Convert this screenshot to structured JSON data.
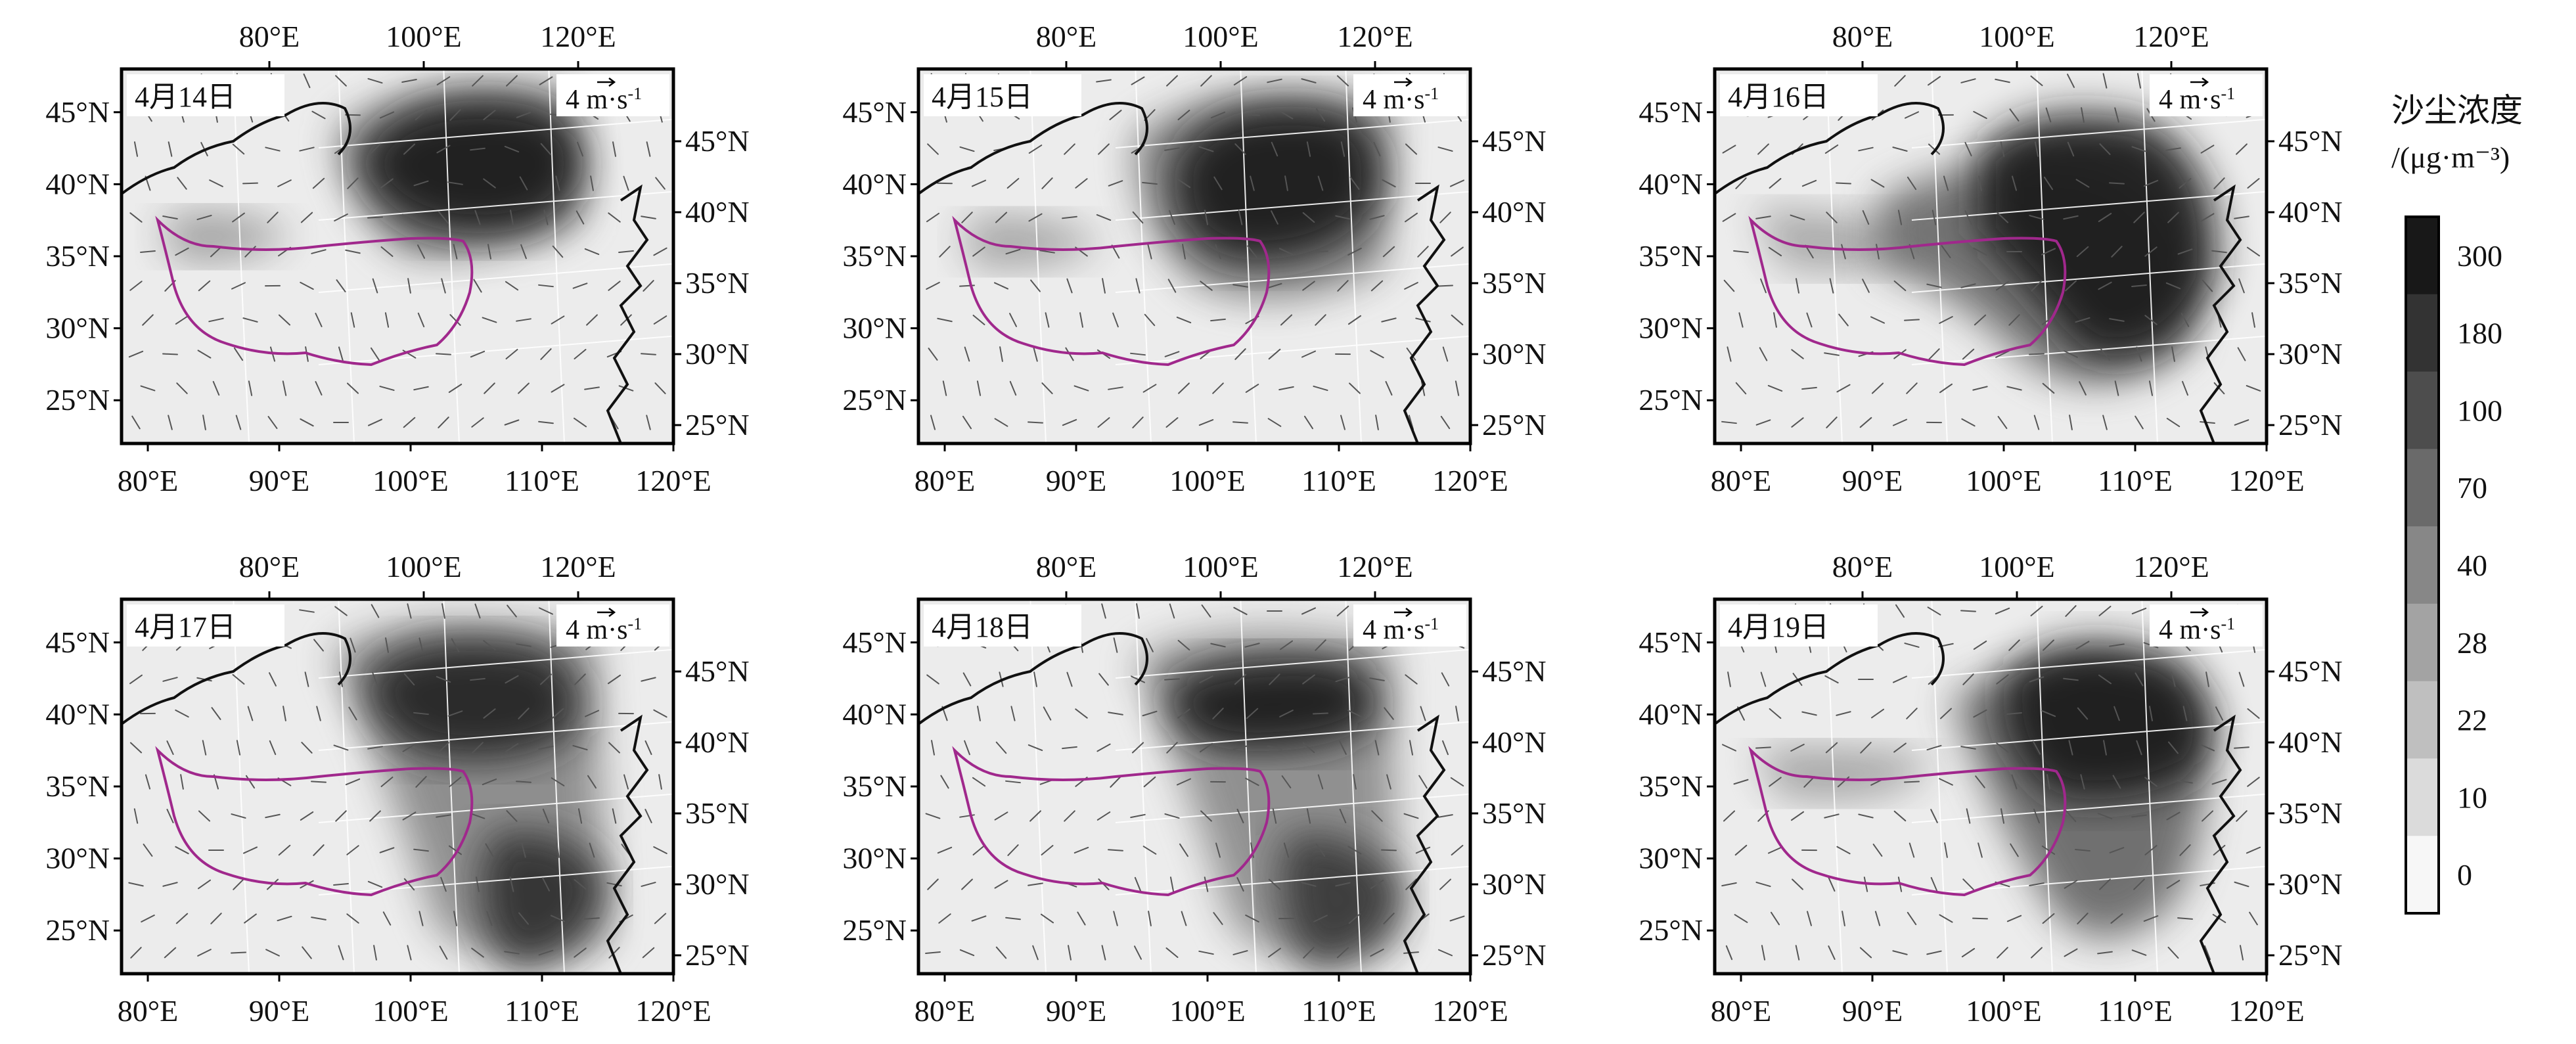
{
  "panels": [
    {
      "id": "p14",
      "date": "4月14日"
    },
    {
      "id": "p15",
      "date": "4月15日"
    },
    {
      "id": "p16",
      "date": "4月16日"
    },
    {
      "id": "p17",
      "date": "4月17日"
    },
    {
      "id": "p18",
      "date": "4月18日"
    },
    {
      "id": "p19",
      "date": "4月19日"
    }
  ],
  "axes": {
    "bottom_ticks": [
      "80°E",
      "90°E",
      "100°E",
      "110°E",
      "120°E"
    ],
    "top_ticks": [
      "80°E",
      "100°E",
      "120°E"
    ],
    "left_ticks": [
      "45°N",
      "40°N",
      "35°N",
      "30°N",
      "25°N"
    ],
    "right_ticks": [
      "45°N",
      "40°N",
      "35°N",
      "30°N",
      "25°N"
    ]
  },
  "wind_reference": {
    "value": "4",
    "unit": "m·s",
    "exponent": "-1"
  },
  "colorbar": {
    "title": "沙尘浓度",
    "unit": "/(μg·m⁻³)",
    "levels": [
      "300",
      "180",
      "100",
      "70",
      "40",
      "28",
      "22",
      "10",
      "0"
    ],
    "colors": [
      "#181818",
      "#333333",
      "#4d4d4d",
      "#6a6a6a",
      "#878787",
      "#a3a3a3",
      "#bfbfbf",
      "#dbdbdb",
      "#f7f7f7"
    ]
  },
  "colors": {
    "boundary": "#a0288c",
    "coast": "#111111",
    "grid": "#ffffff"
  }
}
